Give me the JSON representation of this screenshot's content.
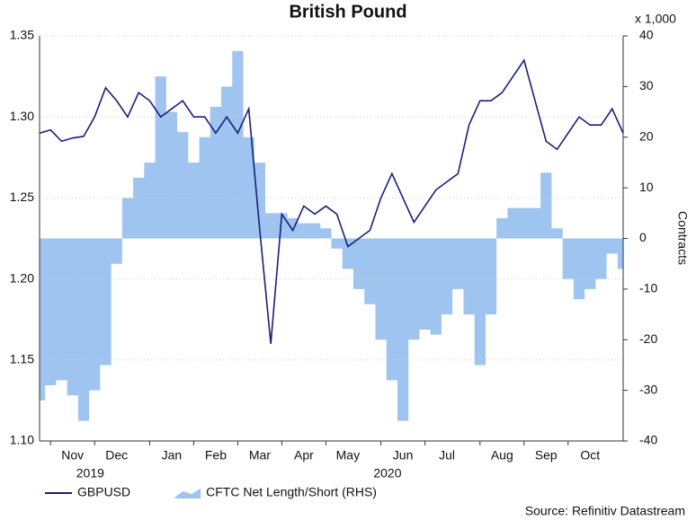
{
  "chart_data": {
    "type": "line",
    "title": "British Pound",
    "categories": [
      null,
      null,
      null,
      "Nov",
      null,
      null,
      null,
      "Dec",
      null,
      null,
      null,
      null,
      "Jan",
      null,
      null,
      null,
      "Feb",
      null,
      null,
      null,
      "Mar",
      null,
      null,
      null,
      "Apr",
      null,
      null,
      null,
      "May",
      null,
      null,
      null,
      null,
      "Jun",
      null,
      null,
      null,
      "Jul",
      null,
      null,
      null,
      null,
      "Aug",
      null,
      null,
      null,
      "Sep",
      null,
      null,
      null,
      "Oct",
      null,
      null,
      null
    ],
    "x_group_labels": [
      "2019",
      "2020"
    ],
    "series": [
      {
        "name": "GBPUSD",
        "type": "line",
        "color": "#1a1f7a",
        "values": [
          1.29,
          1.292,
          1.285,
          1.287,
          1.288,
          1.3,
          1.318,
          1.31,
          1.3,
          1.315,
          1.31,
          1.3,
          1.305,
          1.31,
          1.3,
          1.3,
          1.29,
          1.3,
          1.29,
          1.305,
          1.23,
          1.16,
          1.24,
          1.23,
          1.245,
          1.24,
          1.245,
          1.24,
          1.22,
          1.225,
          1.23,
          1.25,
          1.265,
          1.25,
          1.235,
          1.245,
          1.255,
          1.26,
          1.265,
          1.295,
          1.31,
          1.31,
          1.315,
          1.325,
          1.335,
          1.31,
          1.285,
          1.28,
          1.29,
          1.3,
          1.295,
          1.295,
          1.305,
          1.29
        ]
      },
      {
        "name": "CFTC Net Length/Short (RHS)",
        "type": "area",
        "axis": "y2",
        "color": "#9ec4ef",
        "values": [
          -32,
          -29,
          -28,
          -31,
          -36,
          -30,
          -25,
          -5,
          8,
          12,
          15,
          32,
          25,
          21,
          15,
          20,
          26,
          30,
          37,
          20,
          15,
          5,
          5,
          4,
          3,
          3,
          2,
          -2,
          -6,
          -10,
          -13,
          -20,
          -28,
          -36,
          -20,
          -18,
          -19,
          -15,
          -10,
          -15,
          -25,
          -15,
          4,
          6,
          6,
          6,
          13,
          2,
          -8,
          -12,
          -10,
          -8,
          -3,
          -6
        ]
      }
    ],
    "ylim": [
      1.1,
      1.35
    ],
    "yticks": [
      {
        "value": 1.1,
        "label": "1.10"
      },
      1.15,
      {
        "value": 1.2,
        "label": "1.20"
      },
      1.25,
      {
        "value": 1.3,
        "label": "1.30"
      },
      1.35
    ],
    "y2lim": [
      -40,
      40
    ],
    "y2ticks": [
      -40,
      -30,
      -20,
      -10,
      0,
      10,
      20,
      30,
      40
    ],
    "y2_label": "Contracts",
    "y2_unit": "x 1,000",
    "grid": true,
    "legend": "bottom",
    "source": "Source: Refinitiv Datastream"
  }
}
